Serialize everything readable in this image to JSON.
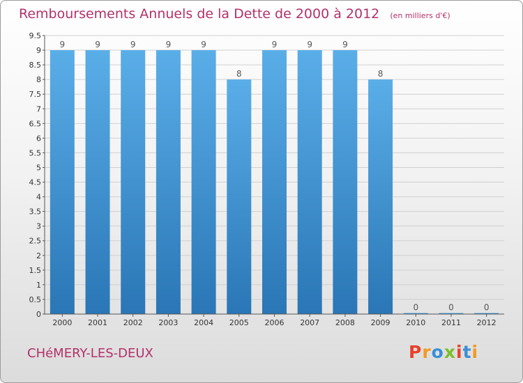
{
  "title": "Remboursements Annuels de la Dette de 2000 à 2012",
  "unit_note": "(en milliers d'€)",
  "commune": "CHéMERY-LES-DEUX",
  "logo": {
    "text": "Proxiti",
    "colors": [
      "#e8412b",
      "#f39a1e",
      "#3a8fd6",
      "#7bbf2a",
      "#e8412b",
      "#3a8fd6",
      "#f39a1e"
    ]
  },
  "chart_data": {
    "type": "bar",
    "categories": [
      "2000",
      "2001",
      "2002",
      "2003",
      "2004",
      "2005",
      "2006",
      "2007",
      "2008",
      "2009",
      "2010",
      "2011",
      "2012"
    ],
    "values": [
      9,
      9,
      9,
      9,
      9,
      8,
      9,
      9,
      9,
      8,
      0,
      0,
      0
    ],
    "data_labels": [
      "9",
      "9",
      "9",
      "9",
      "9",
      "8",
      "9",
      "9",
      "9",
      "8",
      "0",
      "0",
      "0"
    ],
    "yticks": [
      "0",
      "0.5",
      "1",
      "1.5",
      "2",
      "2.5",
      "3",
      "3.5",
      "4",
      "4.5",
      "5",
      "5.5",
      "6",
      "6.5",
      "7",
      "7.5",
      "8",
      "8.5",
      "9",
      "9.5"
    ],
    "ylim": [
      0,
      9.5
    ],
    "grid": true,
    "bar_color": "#3d8fd0"
  }
}
